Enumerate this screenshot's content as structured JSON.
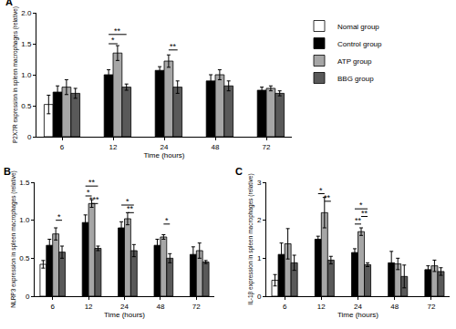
{
  "chart_data": [
    {
      "type": "bar",
      "title": "A",
      "x_label": "Time (hours)",
      "y_label": "P2X7R expression in spleen macrophages (relative)",
      "categories": [
        "6",
        "12",
        "24",
        "48",
        "72"
      ],
      "ylim": [
        0,
        2
      ],
      "yticks": [
        0,
        0.5,
        {
          "value": 1,
          "label": "1.0"
        },
        1.5,
        {
          "value": 2,
          "label": "2.0"
        }
      ],
      "legend": "right",
      "series": [
        {
          "name": "Nomal group",
          "color": "#ffffff",
          "values": [
            0.52,
            null,
            null,
            null,
            null
          ],
          "errors": [
            0.15,
            null,
            null,
            null,
            null
          ]
        },
        {
          "name": "Control group",
          "color": "#000000",
          "values": [
            0.72,
            1.0,
            1.07,
            0.9,
            0.75
          ],
          "errors": [
            0.1,
            0.08,
            0.06,
            0.1,
            0.05
          ]
        },
        {
          "name": "ATP group",
          "color": "#a6a6a6",
          "values": [
            0.8,
            1.35,
            1.22,
            1.0,
            0.78
          ],
          "errors": [
            0.12,
            0.12,
            0.1,
            0.08,
            0.04
          ]
        },
        {
          "name": "BBG group",
          "color": "#595959",
          "values": [
            0.7,
            0.8,
            0.8,
            0.82,
            0.7
          ],
          "errors": [
            0.08,
            0.05,
            0.1,
            0.08,
            0.04
          ]
        }
      ],
      "annotations": [
        {
          "category": "12",
          "from": "Control group",
          "to": "BBG group",
          "y": 1.65,
          "text": "**"
        },
        {
          "category": "12",
          "from": "Control group",
          "to": "ATP group",
          "y": 1.5,
          "text": "*"
        },
        {
          "category": "24",
          "from": "ATP group",
          "to": "BBG group",
          "y": 1.4,
          "text": "**"
        }
      ]
    },
    {
      "type": "bar",
      "title": "B",
      "x_label": "Time (hours)",
      "y_label": "NLRP3 expression in spleen macrophages (relative)",
      "categories": [
        "6",
        "12",
        "24",
        "48",
        "72"
      ],
      "ylim": [
        0,
        1.5
      ],
      "yticks": [
        0,
        0.5,
        {
          "value": 1,
          "label": "1.0"
        },
        1.5
      ],
      "series": [
        {
          "name": "Nomal group",
          "color": "#ffffff",
          "values": [
            0.42,
            null,
            null,
            null,
            null
          ],
          "errors": [
            0.05,
            null,
            null,
            null,
            null
          ]
        },
        {
          "name": "Control group",
          "color": "#000000",
          "values": [
            0.67,
            0.97,
            0.9,
            0.67,
            0.55
          ],
          "errors": [
            0.08,
            0.1,
            0.08,
            0.08,
            0.1
          ]
        },
        {
          "name": "ATP group",
          "color": "#a6a6a6",
          "values": [
            0.82,
            1.22,
            1.02,
            0.78,
            0.6
          ],
          "errors": [
            0.08,
            0.05,
            0.08,
            0.03,
            0.1
          ]
        },
        {
          "name": "BBG group",
          "color": "#595959",
          "values": [
            0.58,
            0.63,
            0.6,
            0.5,
            0.45
          ],
          "errors": [
            0.08,
            0.03,
            0.08,
            0.06,
            0.02
          ]
        }
      ],
      "annotations": [
        {
          "category": "6",
          "from": "ATP group",
          "to": "BBG group",
          "y": 1.0,
          "text": "*"
        },
        {
          "category": "12",
          "from": "Control group",
          "to": "BBG group",
          "y": 1.45,
          "text": "**"
        },
        {
          "category": "12",
          "from": "Control group",
          "to": "ATP group",
          "y": 1.32,
          "text": "*"
        },
        {
          "category": "12",
          "from": "ATP group",
          "to": "BBG group",
          "y": 1.22,
          "text": "***"
        },
        {
          "category": "24",
          "from": "Control group",
          "to": "BBG group",
          "y": 1.2,
          "text": "*"
        },
        {
          "category": "24",
          "from": "ATP group",
          "to": "BBG group",
          "y": 1.1,
          "text": "**"
        },
        {
          "category": "48",
          "from": "ATP group",
          "to": "BBG group",
          "y": 0.95,
          "text": "*"
        }
      ]
    },
    {
      "type": "bar",
      "title": "C",
      "x_label": "Time (hours)",
      "y_label": "IL-1β expression in spleen macrophages (relative)",
      "categories": [
        "6",
        "12",
        "24",
        "48",
        "72"
      ],
      "ylim": [
        0,
        3
      ],
      "yticks": [
        0,
        1,
        2,
        3
      ],
      "series": [
        {
          "name": "Nomal group",
          "color": "#ffffff",
          "values": [
            0.42,
            null,
            null,
            null,
            null
          ],
          "errors": [
            0.15,
            null,
            null,
            null,
            null
          ]
        },
        {
          "name": "Control group",
          "color": "#000000",
          "values": [
            1.1,
            1.5,
            1.15,
            0.88,
            0.7
          ],
          "errors": [
            0.3,
            0.08,
            0.1,
            0.3,
            0.1
          ]
        },
        {
          "name": "ATP group",
          "color": "#a6a6a6",
          "values": [
            1.38,
            2.2,
            1.7,
            0.85,
            0.8
          ],
          "errors": [
            0.4,
            0.4,
            0.1,
            0.15,
            0.15
          ]
        },
        {
          "name": "BBG group",
          "color": "#595959",
          "values": [
            0.88,
            0.95,
            0.83,
            0.52,
            0.65
          ],
          "errors": [
            0.2,
            0.1,
            0.05,
            0.3,
            0.1
          ]
        }
      ],
      "annotations": [
        {
          "category": "12",
          "from": "Control group",
          "to": "ATP group",
          "y": 2.7,
          "text": "*"
        },
        {
          "category": "12",
          "from": "ATP group",
          "to": "BBG group",
          "y": 2.5,
          "text": "**"
        },
        {
          "category": "24",
          "from": "Control group",
          "to": "BBG group",
          "y": 2.3,
          "text": "*"
        },
        {
          "category": "24",
          "from": "ATP group",
          "to": "BBG group",
          "y": 2.1,
          "text": "**"
        },
        {
          "category": "24",
          "from": "Control group",
          "to": "ATP group",
          "y": 1.9,
          "text": "**"
        }
      ]
    }
  ]
}
